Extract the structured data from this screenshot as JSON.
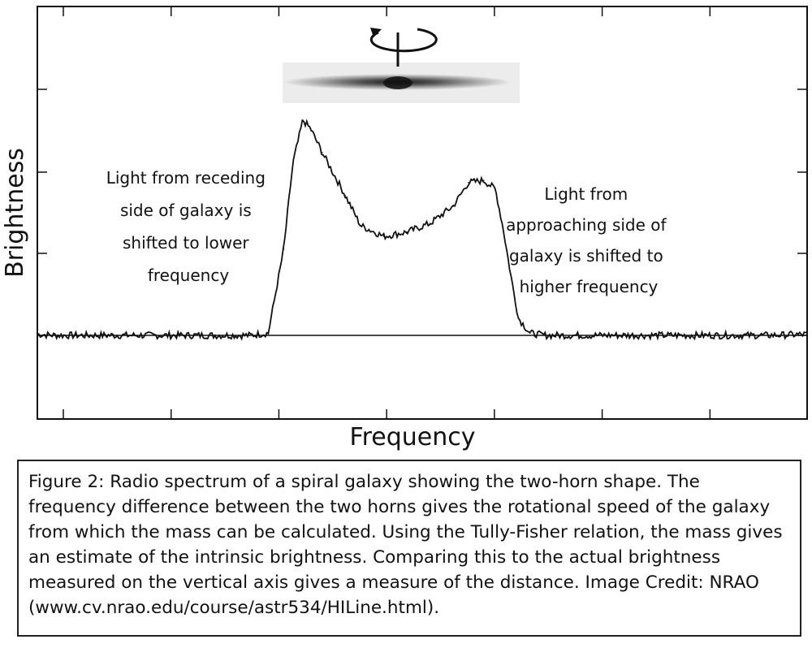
{
  "chart_data": {
    "type": "line",
    "title": "",
    "xlabel": "Frequency",
    "ylabel": "Brightness",
    "xlim": [
      0,
      100
    ],
    "ylim": [
      -1,
      10
    ],
    "baseline": 0,
    "grid": false,
    "legend": "none",
    "series": [
      {
        "values": [
          [
            0,
            0.05
          ],
          [
            2.5,
            0.0
          ],
          [
            5,
            0.0
          ],
          [
            7.5,
            0.0
          ],
          [
            10,
            0.0
          ],
          [
            12.5,
            0.0
          ],
          [
            15,
            0.0
          ],
          [
            17.5,
            0.0
          ],
          [
            20,
            0.0
          ],
          [
            22.5,
            0.0
          ],
          [
            25,
            0.0
          ],
          [
            27.5,
            0.0
          ],
          [
            30,
            0.1
          ],
          [
            32,
            4.0
          ],
          [
            33.2,
            8.0
          ],
          [
            34.5,
            10.0
          ],
          [
            35.5,
            9.6
          ],
          [
            37,
            8.5
          ],
          [
            40,
            6.5
          ],
          [
            42,
            5.1
          ],
          [
            45,
            4.6
          ],
          [
            48,
            4.8
          ],
          [
            51,
            5.2
          ],
          [
            54,
            6.0
          ],
          [
            56,
            7.1
          ],
          [
            58,
            7.2
          ],
          [
            59.5,
            6.8
          ],
          [
            60.5,
            5.0
          ],
          [
            61.5,
            2.8
          ],
          [
            62.5,
            0.8
          ],
          [
            64,
            0.1
          ],
          [
            66,
            0.0
          ],
          [
            70,
            0.0
          ],
          [
            75,
            0.0
          ],
          [
            80,
            0.0
          ],
          [
            85,
            0.0
          ],
          [
            90,
            0.0
          ],
          [
            95,
            0.0
          ],
          [
            100,
            0.05
          ]
        ]
      }
    ],
    "annotations": [
      {
        "text": [
          "Light from receding",
          "side of galaxy is",
          "shifted to lower",
          "frequency"
        ]
      },
      {
        "text": [
          "Light from",
          "approaching side of",
          "galaxy is shifted to",
          "higher frequency"
        ]
      }
    ]
  },
  "galaxy_image": {
    "icon": "edge-on-galaxy-rotation-icon"
  },
  "caption": "Figure 2: Radio spectrum of a spiral galaxy showing the two-horn shape.  The frequency difference between the two horns gives the rotational speed of the galaxy from which the mass can be calculated.  Using the Tully-Fisher relation, the mass gives an estimate of the intrinsic brightness.  Comparing this to the actual brightness measured on the vertical axis gives a measure of the distance.  Image Credit: NRAO (www.cv.nrao.edu/course/astr534/HILine.html)."
}
